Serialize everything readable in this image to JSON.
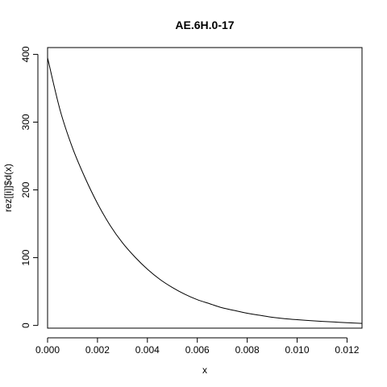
{
  "chart_data": {
    "type": "line",
    "title": "AE.6H.0-17",
    "xlabel": "x",
    "ylabel": "rez[[i]]$d(x)",
    "xlim": [
      0,
      0.0126
    ],
    "ylim": [
      -4,
      410
    ],
    "x_ticks": [
      0.0,
      0.002,
      0.004,
      0.006,
      0.008,
      0.01,
      0.012
    ],
    "x_tick_labels": [
      "0.000",
      "0.002",
      "0.004",
      "0.006",
      "0.008",
      "0.010",
      "0.012"
    ],
    "y_ticks": [
      0,
      100,
      200,
      300,
      400
    ],
    "y_tick_labels": [
      "0",
      "100",
      "200",
      "300",
      "400"
    ],
    "grid": false,
    "series": [
      {
        "x": [
          0.0,
          0.0005,
          0.001,
          0.0015,
          0.002,
          0.0025,
          0.003,
          0.0035,
          0.004,
          0.0045,
          0.005,
          0.0055,
          0.006,
          0.0065,
          0.007,
          0.0075,
          0.008,
          0.0085,
          0.009,
          0.0095,
          0.01,
          0.0105,
          0.011,
          0.0115,
          0.012,
          0.0126
        ],
        "values": [
          395,
          318,
          262,
          218,
          180,
          148,
          122,
          101,
          83,
          68,
          56,
          46,
          38,
          32,
          26,
          22,
          18,
          15,
          12,
          10,
          8.5,
          7.2,
          6.0,
          5.0,
          4.0,
          3.0
        ]
      }
    ]
  }
}
